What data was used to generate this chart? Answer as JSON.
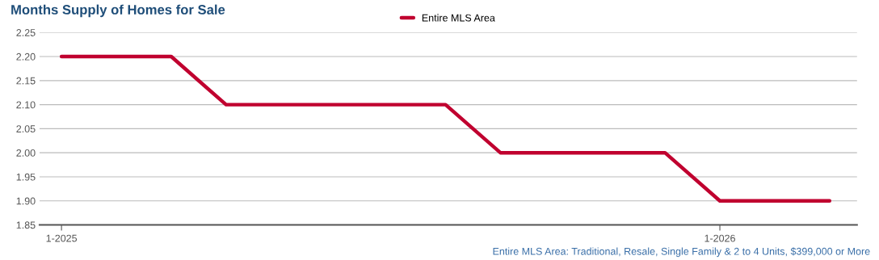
{
  "chart_data": {
    "type": "line",
    "title": "Months Supply of Homes for Sale",
    "categories": [
      "1-2025",
      null,
      null,
      null,
      null,
      null,
      null,
      null,
      null,
      null,
      null,
      null,
      "1-2026",
      null,
      null
    ],
    "series": [
      {
        "name": "Entire MLS Area",
        "color": "#c0002f",
        "values": [
          2.2,
          2.2,
          2.2,
          2.1,
          2.1,
          2.1,
          2.1,
          2.1,
          2.0,
          2.0,
          2.0,
          2.0,
          1.9,
          1.9,
          1.9
        ]
      }
    ],
    "ylim": [
      1.85,
      2.25
    ],
    "yticks": [
      {
        "value": 1.85,
        "label": "1.85"
      },
      {
        "value": 1.9,
        "label": "1.90"
      },
      {
        "value": 1.95,
        "label": "1.95"
      },
      {
        "value": 2.0,
        "label": "2.00"
      },
      {
        "value": 2.05,
        "label": "2.05"
      },
      {
        "value": 2.1,
        "label": "2.10"
      },
      {
        "value": 2.15,
        "label": "2.15"
      },
      {
        "value": 2.2,
        "label": "2.20"
      },
      {
        "value": 2.25,
        "label": "2.25"
      }
    ],
    "grid": "y",
    "legend": "top",
    "marker": "none",
    "line_style": "solid",
    "annotations": [
      "Entire MLS Area: Traditional, Resale, Single Family & 2 to 4 Units, $399,000 or More"
    ]
  }
}
